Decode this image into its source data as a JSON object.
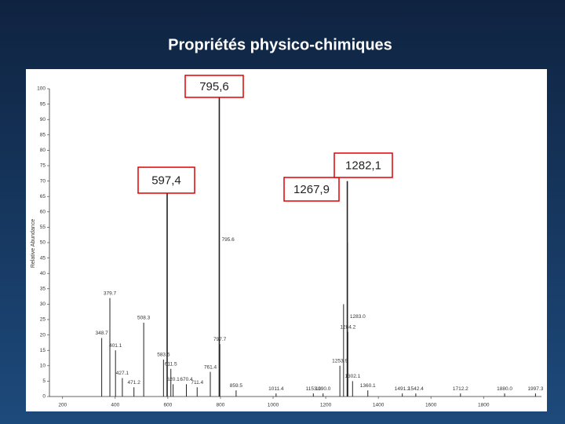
{
  "title": "Propriétés physico-chimiques",
  "chart_data": {
    "type": "spectrum",
    "ylabel": "Relative Abundance",
    "xlim": [
      150,
      2020
    ],
    "ylim": [
      0,
      100
    ],
    "xticks": [
      200,
      400,
      600,
      800,
      1000,
      1200,
      1400,
      1600,
      1800
    ],
    "yticks": [
      0,
      5,
      10,
      15,
      20,
      25,
      30,
      35,
      40,
      45,
      50,
      55,
      60,
      65,
      70,
      75,
      80,
      85,
      90,
      95,
      100
    ],
    "color": "#222222",
    "x": [
      348.7,
      379.7,
      401.1,
      427.1,
      471.2,
      508.3,
      583.5,
      597.4,
      611.5,
      620.1,
      670.4,
      711.4,
      761.4,
      795.6,
      797.7,
      859.5,
      1011.4,
      1153.0,
      1190.0,
      1253.9,
      1267.9,
      1282.1,
      1283.0,
      1284.2,
      1302.1,
      1360.1,
      1491.2,
      1542.4,
      1712.2,
      1880.0,
      1997.3
    ],
    "values": [
      19,
      32,
      15,
      6,
      3,
      24,
      12,
      71,
      9,
      4,
      4,
      3,
      8,
      100,
      17,
      2,
      1,
      1,
      1,
      10,
      30,
      70,
      50,
      21,
      5,
      2,
      1,
      1,
      1,
      1,
      1
    ],
    "x_labels": [
      "348.7",
      "379.7",
      "401.1",
      "427.1",
      "471.2",
      "508.3",
      "583.5",
      null,
      "611.5",
      "620.1",
      "670.4",
      "711.4",
      "761.4",
      "795.6",
      "797.7",
      "859.5",
      "1011.4",
      "1153.0",
      "1190.0",
      "1253.9",
      null,
      null,
      "1283.0",
      "1284.2",
      "1302.1",
      "1360.1",
      "1491.2",
      "1542.4",
      "1712.2",
      "1880.0",
      "1997.3"
    ],
    "annotations": [
      "795,6",
      "597,4",
      "1267,9",
      "1282,1"
    ]
  }
}
